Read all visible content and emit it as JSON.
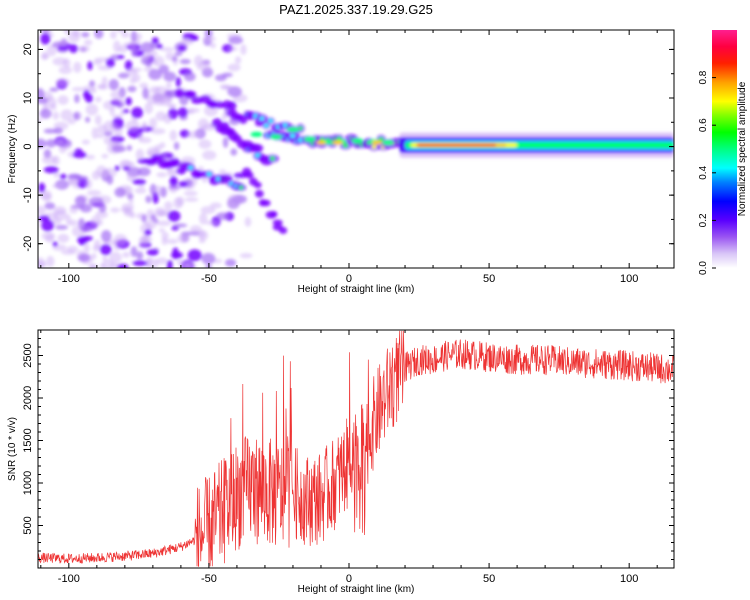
{
  "figure_title": "PAZ1.2025.337.19.29.G25",
  "colors": {
    "snr_line": "#ee3333",
    "axis": "#000000",
    "spec_cmap": [
      "#ffffff",
      "#c49cf4",
      "#7a00ff",
      "#0000ff",
      "#00ffff",
      "#00ff00",
      "#ffff00",
      "#ff7f00",
      "#ff0000",
      "#ff00aa"
    ]
  },
  "chart_data": [
    {
      "type": "heatmap",
      "title": "PAZ1.2025.337.19.29.G25",
      "xlabel": "Height of straight line (km)",
      "ylabel": "Frequency (Hz)",
      "xlim": [
        -111,
        116
      ],
      "ylim": [
        -25,
        24
      ],
      "xticks": [
        -100,
        -50,
        0,
        50,
        100
      ],
      "xtick_labels": [
        "-100",
        "-50",
        "0",
        "50",
        "100"
      ],
      "yticks": [
        -20,
        -10,
        0,
        10,
        20
      ],
      "ytick_labels": [
        "-20",
        "-10",
        "0",
        "10",
        "20"
      ],
      "colorbar": {
        "label": "Normalized spectral amplitude",
        "range": [
          0,
          1
        ],
        "ticks": [
          0.0,
          0.2,
          0.4,
          0.6,
          0.8
        ],
        "tick_labels": [
          "0.0",
          "0.2",
          "0.4",
          "0.6",
          "0.8"
        ]
      },
      "features": [
        {
          "name": "main tone",
          "x": [
            20,
            116
          ],
          "freq": 0.3,
          "amplitude": 0.9
        },
        {
          "name": "converging branch",
          "x": [
            -45,
            20
          ],
          "freq": [
            7,
            0.5
          ],
          "amplitude": 0.5
        },
        {
          "name": "lower branch",
          "x": [
            -70,
            -25
          ],
          "freq": [
            -3,
            -6
          ],
          "amplitude": 0.35
        },
        {
          "name": "noise region",
          "x": [
            -111,
            -40
          ],
          "freq": [
            -25,
            24
          ],
          "amplitude": 0.15
        }
      ]
    },
    {
      "type": "line",
      "xlabel": "Height of straight line (km)",
      "ylabel": "SNR (10 * v/v)",
      "xlim": [
        -111,
        116
      ],
      "ylim": [
        0,
        2800
      ],
      "xticks": [
        -100,
        -50,
        0,
        50,
        100
      ],
      "xtick_labels": [
        "-100",
        "-50",
        "0",
        "50",
        "100"
      ],
      "yticks": [
        500,
        1000,
        1500,
        2000,
        2500
      ],
      "ytick_labels": [
        "500",
        "1000",
        "1500",
        "2000",
        "2500"
      ],
      "series": [
        {
          "name": "SNR",
          "x": [
            -111,
            -100,
            -90,
            -80,
            -70,
            -60,
            -55,
            -50,
            -45,
            -40,
            -35,
            -30,
            -25,
            -20,
            -15,
            -10,
            -5,
            0,
            5,
            10,
            15,
            20,
            25,
            30,
            35,
            40,
            50,
            60,
            70,
            80,
            90,
            100,
            110,
            116
          ],
          "values": [
            120,
            110,
            120,
            140,
            170,
            250,
            330,
            450,
            650,
            850,
            950,
            900,
            850,
            900,
            800,
            820,
            1000,
            1250,
            1400,
            1800,
            2150,
            2350,
            2450,
            2450,
            2500,
            2520,
            2480,
            2450,
            2450,
            2420,
            2400,
            2380,
            2350,
            2330
          ]
        }
      ]
    }
  ]
}
